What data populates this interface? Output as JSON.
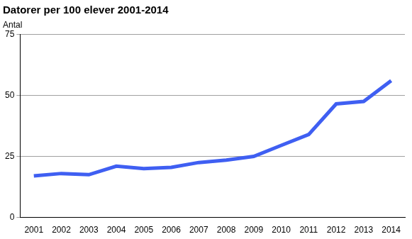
{
  "chart_data": {
    "type": "line",
    "title": "Datorer per 100 elever 2001-2014",
    "ylabel": "Antal",
    "categories": [
      "2001",
      "2002",
      "2003",
      "2004",
      "2005",
      "2006",
      "2007",
      "2008",
      "2009",
      "2010",
      "2011",
      "2012",
      "2013",
      "2014"
    ],
    "values": [
      17,
      18,
      17.5,
      21,
      20,
      20.5,
      22.5,
      23.5,
      25,
      29.5,
      34,
      46.5,
      47.5,
      56
    ],
    "color": "#3f5ff2",
    "ylim": [
      0,
      75
    ],
    "yticks": [
      0,
      25,
      50,
      75
    ],
    "grid": true
  }
}
